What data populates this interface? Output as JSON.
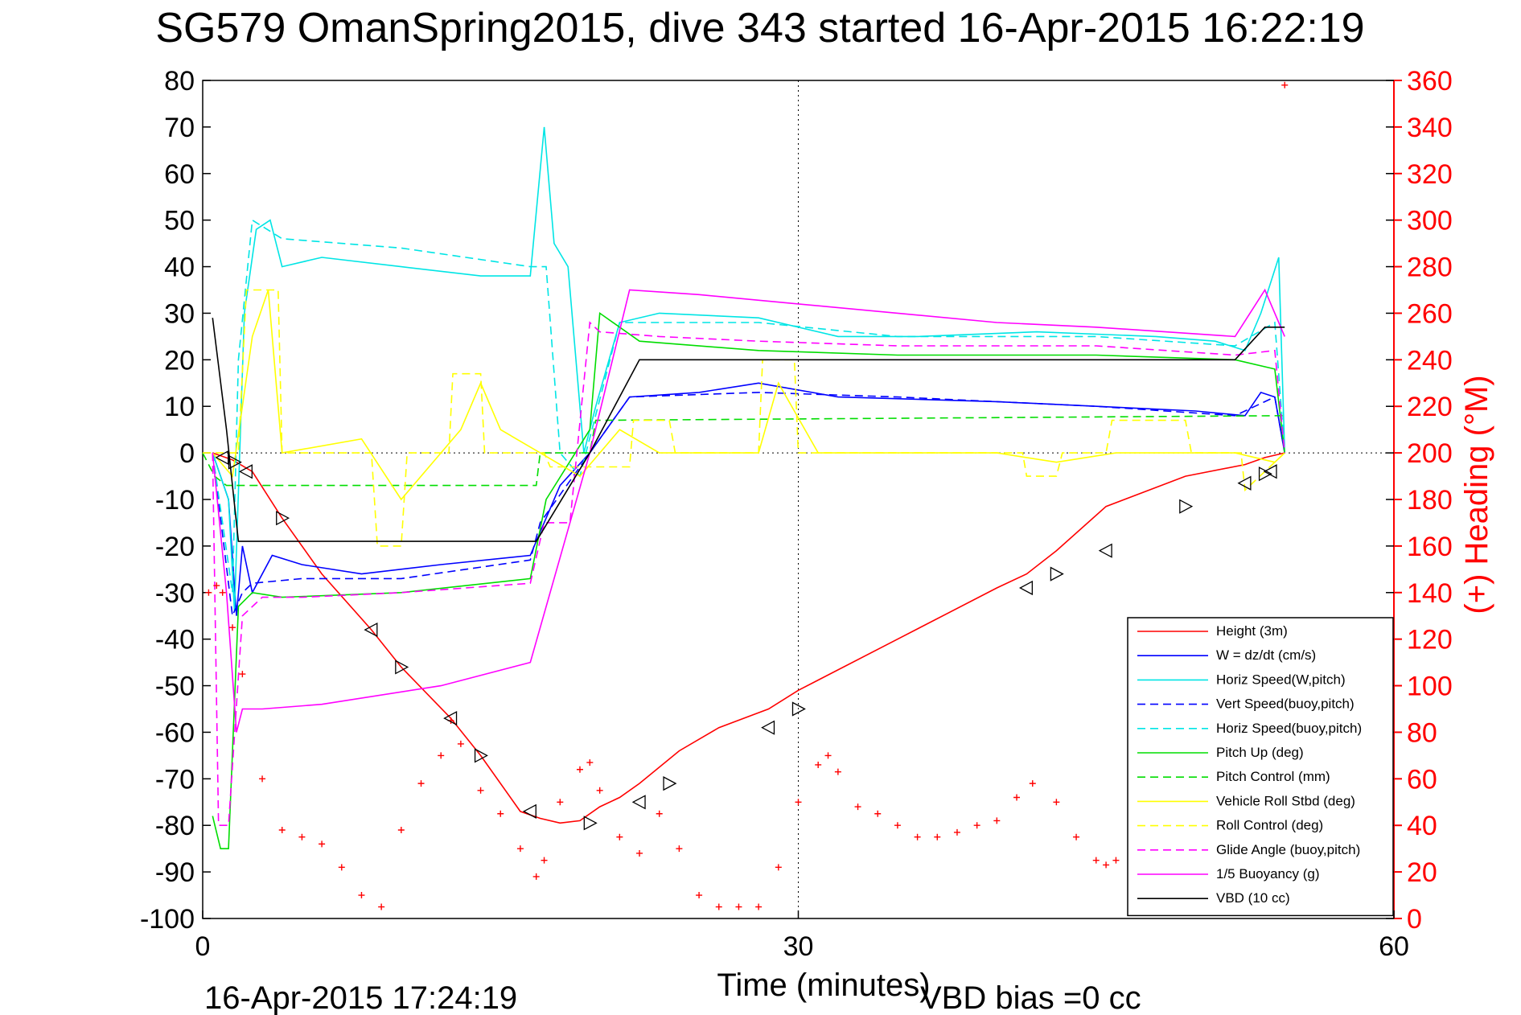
{
  "chart_data": {
    "type": "line",
    "title": "SG579 OmanSpring2015, dive 343 started 16-Apr-2015 16:22:19",
    "xlabel": "Time (minutes)",
    "ylabel_right": "(+) Heading (°M)",
    "xlim": [
      0,
      60
    ],
    "ylim_left": [
      -100,
      80
    ],
    "ylim_right": [
      0,
      360
    ],
    "x_ticks": [
      0,
      30,
      60
    ],
    "y_ticks_left": [
      80,
      70,
      60,
      50,
      40,
      30,
      20,
      10,
      0,
      -10,
      -20,
      -30,
      -40,
      -50,
      -60,
      -70,
      -80,
      -90,
      -100
    ],
    "y_ticks_right": [
      360,
      340,
      320,
      300,
      280,
      260,
      240,
      220,
      200,
      180,
      160,
      140,
      120,
      100,
      80,
      60,
      40,
      20,
      0
    ],
    "grid": "dotted at x=30 and y=0",
    "legend_position": "bottom-right",
    "footer_time": "16-Apr-2015 17:24:19",
    "footer_note": "VBD bias =0 cc",
    "series": [
      {
        "name": "Height (3m)",
        "color": "#ff0000",
        "style": "solid",
        "x": [
          0.5,
          1.5,
          2.5,
          4,
          6,
          8.5,
          10,
          12.5,
          14,
          16,
          17,
          18,
          19,
          20,
          21,
          22,
          24,
          26,
          28.5,
          30,
          35,
          40,
          41.5,
          43,
          45.5,
          49.5,
          52.5,
          53.5,
          54.5
        ],
        "y": [
          0,
          -1.5,
          -4,
          -14,
          -26,
          -38,
          -46,
          -57,
          -65,
          -77,
          -78.5,
          -79.5,
          -79,
          -76,
          -74,
          -71,
          -64,
          -59,
          -55,
          -51,
          -40,
          -29,
          -26,
          -21,
          -11.5,
          -5,
          -2.5,
          -1,
          0
        ]
      },
      {
        "name": "W = dz/dt (cm/s)",
        "color": "#0000ff",
        "style": "solid",
        "x": [
          0.5,
          1.3,
          1.7,
          2,
          2.5,
          3.5,
          5,
          8,
          12,
          16.5,
          17,
          18,
          19.5,
          21.5,
          25,
          28,
          32,
          40,
          50,
          52.5,
          53.3,
          54,
          54.5
        ],
        "y": [
          0,
          -10,
          -35,
          -20,
          -30,
          -22,
          -24,
          -26,
          -24,
          -22,
          -17,
          -7,
          0,
          12,
          13,
          15,
          12,
          11,
          9,
          8,
          13,
          12,
          0
        ]
      },
      {
        "name": "Horiz Speed(W,pitch)",
        "color": "#00e5e5",
        "style": "solid",
        "x": [
          0.5,
          1.3,
          1.6,
          2.1,
          2.7,
          3.4,
          4,
          6,
          10,
          14,
          16.5,
          17.2,
          17.7,
          18.4,
          19.2,
          19.8,
          21,
          23,
          28,
          32,
          36,
          42,
          48,
          51,
          52.5,
          53.3,
          54.2,
          54.5
        ],
        "y": [
          0,
          -10,
          -34,
          30,
          48,
          50,
          40,
          42,
          40,
          38,
          38,
          70,
          45,
          40,
          0,
          10,
          28,
          30,
          29,
          25,
          25,
          26,
          25,
          24,
          22,
          30,
          42,
          0
        ]
      },
      {
        "name": "Vert Speed(buoy,pitch)",
        "color": "#0000ff",
        "style": "dashed",
        "x": [
          0.5,
          1.5,
          2,
          2.5,
          5,
          10,
          16.5,
          17,
          19.5,
          21.5,
          28,
          35,
          45,
          52,
          54,
          54.5
        ],
        "y": [
          0,
          -35,
          -30,
          -28,
          -27,
          -27,
          -23,
          -15,
          0,
          12,
          13,
          12,
          10,
          8,
          12,
          0
        ]
      },
      {
        "name": "Horiz Speed(buoy,pitch)",
        "color": "#00e5e5",
        "style": "dashed",
        "x": [
          0.5,
          1.5,
          1.8,
          2.5,
          4,
          10,
          16.5,
          17.3,
          18,
          19,
          21,
          28,
          35,
          45,
          52,
          54,
          54.5
        ],
        "y": [
          0,
          -30,
          20,
          50,
          46,
          44,
          40,
          40,
          0,
          -5,
          28,
          28,
          25,
          25,
          23,
          28,
          0
        ]
      },
      {
        "name": "Pitch Up (deg)",
        "color": "#00dd00",
        "style": "solid",
        "x": [
          0.5,
          0.9,
          1.3,
          1.8,
          2.5,
          4,
          10,
          16.5,
          17.3,
          19.5,
          20,
          22,
          28,
          35,
          45,
          52,
          54,
          54.5
        ],
        "y": [
          -78,
          -85,
          -85,
          -33,
          -30,
          -31,
          -30,
          -27,
          -10,
          5,
          30,
          24,
          22,
          21,
          21,
          20,
          18,
          0
        ]
      },
      {
        "name": "Pitch Control (mm)",
        "color": "#00dd00",
        "style": "dashed",
        "x": [
          0,
          0.6,
          1.2,
          16.8,
          17,
          19.5,
          19.8,
          54.5
        ],
        "y": [
          0,
          -5,
          -7,
          -7,
          0,
          0,
          7,
          8
        ]
      },
      {
        "name": "Vehicle Roll Stbd (deg)",
        "color": "#ffff00",
        "style": "solid",
        "x": [
          0.5,
          1.5,
          2.5,
          3.3,
          4,
          8,
          10,
          12,
          13,
          14,
          15,
          17,
          19,
          21,
          23,
          28,
          29,
          31,
          34,
          40,
          43,
          46,
          52,
          54,
          54.5
        ],
        "y": [
          0,
          -5,
          25,
          35,
          0,
          3,
          -10,
          0,
          5,
          15,
          5,
          0,
          -5,
          5,
          0,
          0,
          15,
          0,
          0,
          0,
          -2,
          0,
          0,
          -2,
          0
        ]
      },
      {
        "name": "Roll Control (deg)",
        "color": "#ffff00",
        "style": "dashed",
        "x": [
          0,
          1.8,
          2.2,
          3.8,
          4,
          8.5,
          8.8,
          10,
          10.3,
          12.4,
          12.6,
          14,
          14.2,
          17.2,
          17.5,
          21.5,
          21.7,
          23.5,
          23.8,
          28,
          28.2,
          29.8,
          30,
          41.3,
          41.5,
          43,
          43.3,
          45.5,
          45.8,
          49.5,
          49.8,
          52.3,
          52.5,
          54.5
        ],
        "y": [
          0,
          0,
          35,
          35,
          0,
          0,
          -20,
          -20,
          0,
          0,
          17,
          17,
          0,
          0,
          -3,
          -3,
          7,
          7,
          0,
          0,
          20,
          20,
          0,
          0,
          -5,
          -5,
          0,
          0,
          7,
          7,
          0,
          0,
          -8,
          0
        ]
      },
      {
        "name": "Glide Angle (buoy,pitch)",
        "color": "#ff00ff",
        "style": "dashed",
        "x": [
          0.5,
          0.8,
          1.3,
          2,
          3,
          5,
          10,
          16.5,
          17.2,
          18.5,
          19.5,
          20,
          23,
          28,
          35,
          45,
          52,
          54,
          54.5
        ],
        "y": [
          0,
          -80,
          -80,
          -35,
          -31,
          -31,
          -30,
          -28,
          -15,
          -15,
          28,
          26,
          25,
          24,
          23,
          23,
          21,
          22,
          0
        ]
      },
      {
        "name": "1/5 Buoyancy (g)",
        "color": "#ff00ff",
        "style": "solid",
        "x": [
          0.5,
          1.2,
          1.7,
          2,
          3,
          6,
          12,
          16.5,
          19.5,
          21.5,
          25,
          30,
          35,
          40,
          45,
          52,
          53.5,
          54.5
        ],
        "y": [
          0,
          -30,
          -60,
          -55,
          -55,
          -54,
          -50,
          -45,
          0,
          35,
          34,
          32,
          30,
          28,
          27,
          25,
          35,
          25
        ]
      },
      {
        "name": "VBD (10 cc)",
        "color": "#000000",
        "style": "solid",
        "x": [
          0.5,
          1.2,
          1.8,
          2.2,
          16.8,
          19.5,
          22,
          25,
          52,
          53.5,
          54.5
        ],
        "y": [
          29,
          5,
          -19,
          -19,
          -19,
          0,
          20,
          20,
          20,
          27,
          27
        ]
      }
    ],
    "heading": {
      "name": "Heading",
      "color": "#ff0000",
      "marker": "+",
      "x": [
        0.3,
        0.7,
        1.0,
        1.5,
        2.0,
        3.0,
        4.0,
        5.0,
        6.0,
        7.0,
        8.0,
        9.0,
        10.0,
        11.0,
        12.0,
        12.5,
        13.0,
        14.0,
        15.0,
        16.0,
        16.8,
        17.2,
        18.0,
        19.0,
        19.5,
        20.0,
        21.0,
        22.0,
        23.0,
        24.0,
        25.0,
        26.0,
        27.0,
        28.0,
        29.0,
        30.0,
        31.0,
        31.5,
        32.0,
        33.0,
        34.0,
        35.0,
        36.0,
        37.0,
        38.0,
        39.0,
        40.0,
        41.0,
        41.8,
        43.0,
        44.0,
        45.0,
        45.5,
        46.0,
        54.5,
        54.5
      ],
      "y": [
        140,
        143,
        140,
        125,
        105,
        60,
        38,
        35,
        32,
        22,
        10,
        5,
        38,
        58,
        70,
        85,
        75,
        55,
        45,
        30,
        18,
        25,
        50,
        64,
        67,
        55,
        35,
        28,
        45,
        30,
        10,
        5,
        5,
        5,
        22,
        50,
        66,
        70,
        63,
        48,
        45,
        40,
        35,
        35,
        37,
        40,
        42,
        52,
        58,
        50,
        35,
        25,
        23,
        25,
        5,
        358
      ]
    },
    "triangles": {
      "color": "#000000",
      "x": [
        1.0,
        1.6,
        2.2,
        4.0,
        8.5,
        10.0,
        12.5,
        14.0,
        16.5,
        19.5,
        22.0,
        23.5,
        28.5,
        30.0,
        41.5,
        43.0,
        45.5,
        49.5,
        52.5,
        53.5,
        53.8
      ],
      "y": [
        -1,
        -2,
        -4,
        -14,
        -38,
        -46,
        -57,
        -65,
        -77,
        -79.5,
        -75,
        -71,
        -59,
        -55,
        -29,
        -26,
        -21,
        -11.5,
        -6.5,
        -4.5,
        -4
      ]
    }
  }
}
